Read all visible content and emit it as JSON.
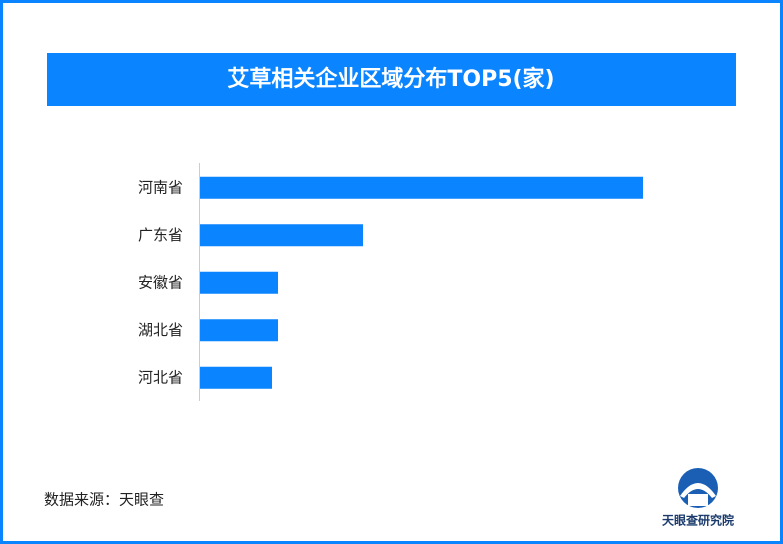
{
  "chart_data": {
    "type": "bar",
    "orientation": "horizontal",
    "title": "艾草相关企业区域分布TOP5(家)",
    "categories": [
      "河南省",
      "广东省",
      "安徽省",
      "湖北省",
      "河北省"
    ],
    "values": [
      443,
      163,
      78,
      78,
      72
    ],
    "color": "#0a84ff",
    "source": "数据来源：天眼查",
    "logo_text": "天眼查研究院"
  }
}
